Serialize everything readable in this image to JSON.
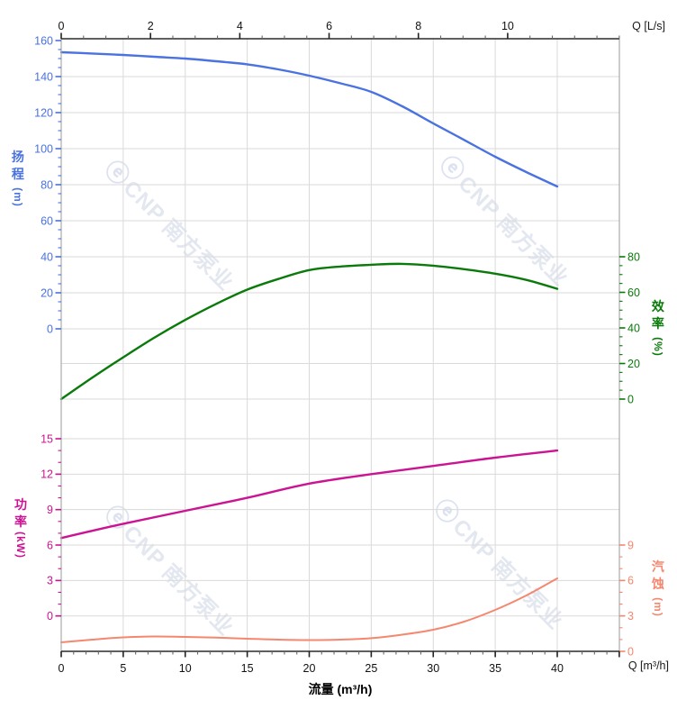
{
  "watermark": {
    "logo_glyph": "ⓔ",
    "text": "CNP 南方泵业"
  },
  "chart_data": {
    "type": "line",
    "title": "",
    "x_axis_bottom": {
      "label": "流量 (m³/h)",
      "unit_label": "Q [m³/h]",
      "ticks": [
        0,
        5,
        10,
        15,
        20,
        25,
        30,
        35,
        40
      ],
      "range": [
        0,
        45
      ],
      "minor_step": 1,
      "grid": true
    },
    "x_axis_top": {
      "unit_label": "Q [L/s]",
      "ticks": [
        0,
        2,
        4,
        6,
        8,
        10
      ],
      "range": [
        0,
        12.5
      ],
      "minor_step": 0.5,
      "conversion": "1 L/s = 3.6 m³/h"
    },
    "y_axes": [
      {
        "id": "head",
        "title": "扬程",
        "unit": "(m)",
        "side": "left",
        "color": "#4a72e0",
        "ticks": [
          0,
          20,
          40,
          60,
          80,
          100,
          120,
          140,
          160
        ],
        "range": [
          0,
          160
        ],
        "minor_step": 5
      },
      {
        "id": "efficiency",
        "title": "效率",
        "unit": "(%)",
        "side": "right",
        "color": "#0a7a0a",
        "ticks": [
          0,
          20,
          40,
          60,
          80
        ],
        "range": [
          0,
          80
        ],
        "minor_step": 5
      },
      {
        "id": "power",
        "title": "功率",
        "unit": "(kW)",
        "side": "left",
        "color": "#cc1493",
        "ticks": [
          0,
          3,
          6,
          9,
          12,
          15
        ],
        "range": [
          0,
          15
        ],
        "minor_step": 1
      },
      {
        "id": "npsh",
        "title": "汽蚀",
        "unit": "(m)",
        "side": "right",
        "color": "#f5876f",
        "ticks": [
          0,
          3,
          6,
          9
        ],
        "range": [
          0,
          9
        ],
        "minor_step": 1
      }
    ],
    "series": [
      {
        "name": "head",
        "axis": "head",
        "color": "#4a72e0",
        "x": [
          0,
          2.5,
          5,
          7.5,
          10,
          12.5,
          15,
          17.5,
          20,
          22.5,
          25,
          27.5,
          30,
          32.5,
          35,
          37.5,
          40
        ],
        "y": [
          153.5,
          152.8,
          152,
          151,
          150,
          148.5,
          146.8,
          144,
          140.5,
          136.3,
          131.5,
          123.5,
          114,
          104.8,
          95.5,
          87,
          79
        ]
      },
      {
        "name": "efficiency",
        "axis": "efficiency",
        "color": "#0a7a0a",
        "x": [
          0,
          2.5,
          5,
          7.5,
          10,
          12.5,
          15,
          17.5,
          20,
          22.5,
          25,
          27.5,
          30,
          32.5,
          35,
          37.5,
          40
        ],
        "y": [
          0,
          12,
          23.5,
          34.5,
          44.5,
          53.5,
          61.5,
          67.5,
          72.5,
          74.5,
          75.5,
          76,
          75,
          73,
          70.5,
          67,
          62
        ]
      },
      {
        "name": "power",
        "axis": "power",
        "color": "#cc1493",
        "x": [
          0,
          5,
          10,
          15,
          20,
          25,
          30,
          35,
          40
        ],
        "y": [
          6.6,
          7.8,
          8.9,
          10.0,
          11.2,
          12.0,
          12.7,
          13.4,
          14.0
        ]
      },
      {
        "name": "npsh",
        "axis": "npsh",
        "color": "#f5876f",
        "x": [
          0,
          2.5,
          5,
          7.5,
          10,
          12.5,
          15,
          17.5,
          20,
          22.5,
          25,
          27.5,
          30,
          32.5,
          35,
          37.5,
          40
        ],
        "y": [
          0.76,
          0.99,
          1.18,
          1.26,
          1.22,
          1.16,
          1.07,
          0.99,
          0.95,
          0.99,
          1.11,
          1.41,
          1.83,
          2.52,
          3.51,
          4.73,
          6.18
        ]
      }
    ],
    "legend": "none",
    "grid": true
  }
}
